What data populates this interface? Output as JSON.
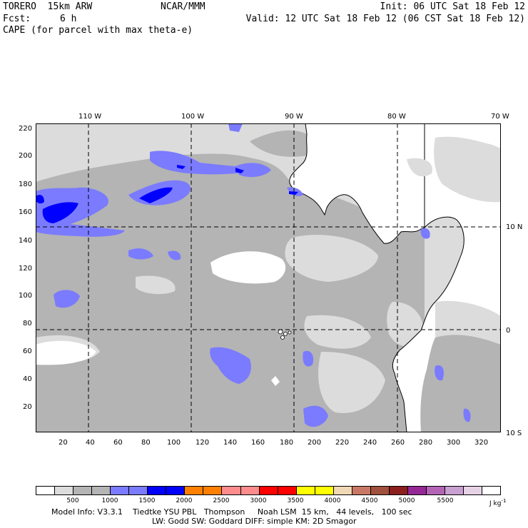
{
  "header": {
    "model": "TORERO  15km ARW",
    "org": "NCAR/MMM",
    "init": "Init: 06 UTC Sat 18 Feb 12",
    "fcst_label": "Fcst:",
    "fcst_value": "6 h",
    "valid": "Valid: 12 UTC Sat 18 Feb 12 (06 CST Sat 18 Feb 12)",
    "field": "CAPE (for parcel with max theta-e)"
  },
  "map": {
    "top_lon_labels": [
      "110 W",
      "100 W",
      "90 W",
      "80 W",
      "70 W"
    ],
    "right_lat_labels": [
      "10 N",
      "0",
      "10 S"
    ],
    "y_grid_labels": [
      "220",
      "200",
      "180",
      "160",
      "140",
      "120",
      "100",
      "80",
      "60",
      "40",
      "20"
    ],
    "x_grid_labels": [
      "20",
      "40",
      "60",
      "80",
      "100",
      "120",
      "140",
      "160",
      "180",
      "200",
      "220",
      "240",
      "260",
      "280",
      "300",
      "320"
    ],
    "x_range": [
      0,
      335
    ],
    "y_range": [
      0,
      225
    ],
    "land_color": "#ffffff",
    "fill_colors": {
      "cape_0_500": "#ffffff",
      "cape_500_1000": "#dcdcdc",
      "cape_1000_1500": "#b4b4b4",
      "cape_1500_2000": "#7b7bff",
      "cape_2000_2500": "#0000ff"
    }
  },
  "colorbar": {
    "colors": [
      "#ffffff",
      "#dcdcdc",
      "#b4b4b4",
      "#b4b4b4",
      "#7b7bff",
      "#7b7bff",
      "#0000ff",
      "#0000ff",
      "#ff8000",
      "#ff8000",
      "#ff8c8c",
      "#ff8c8c",
      "#ff0000",
      "#ff0000",
      "#ffff00",
      "#ffff00",
      "#f0d8b4",
      "#c87864",
      "#a0503c",
      "#8c1e1e",
      "#962896",
      "#b464b4",
      "#c8a0d2",
      "#e6d2e6",
      "#ffffff"
    ],
    "labels": [
      "500",
      "1000",
      "1500",
      "2000",
      "2500",
      "3000",
      "3500",
      "4000",
      "4500",
      "5000",
      "5500"
    ],
    "units": "J kg",
    "units_exp": "-1"
  },
  "footer": {
    "line1": "Model Info: V3.3.1    Tiedtke YSU PBL   Thompson     Noah LSM  15 km,   44 levels,   100 sec",
    "line2": "LW: Godd SW: Goddard DIFF: simple KM: 2D Smagor"
  }
}
